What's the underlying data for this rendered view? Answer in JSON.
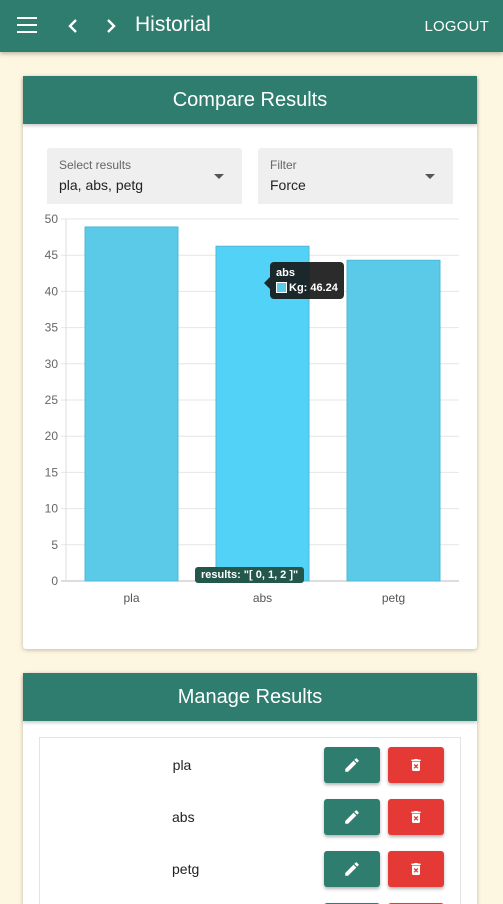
{
  "appbar": {
    "title": "Historial",
    "logout_label": "LOGOUT",
    "icons": [
      "menu-icon",
      "chevron-left-icon",
      "chevron-right-icon"
    ]
  },
  "compare": {
    "title": "Compare Results",
    "select_results": {
      "label": "Select results",
      "value": "pla, abs, petg"
    },
    "filter": {
      "label": "Filter",
      "value": "Force"
    },
    "results_badge": "results: \"[ 0, 1, 2 ]\"",
    "tooltip": {
      "title": "abs",
      "text": "Kg: 46.24"
    }
  },
  "chart_data": {
    "type": "bar",
    "categories": [
      "pla",
      "abs",
      "petg"
    ],
    "series": [
      {
        "name": "Kg",
        "values": [
          48.9,
          46.24,
          44.3
        ]
      }
    ],
    "ylim": [
      0,
      50
    ],
    "yticks": [
      0,
      5,
      10,
      15,
      20,
      25,
      30,
      35,
      40,
      45,
      50
    ],
    "grid": true,
    "colors": {
      "bar": "#5bcae9",
      "bar_active": "#52d2f7",
      "bar_border": "#4fb8d6"
    }
  },
  "manage": {
    "title": "Manage Results",
    "items": [
      {
        "name": "pla"
      },
      {
        "name": "abs"
      },
      {
        "name": "petg"
      }
    ]
  },
  "colors": {
    "primary": "#2e7d6e",
    "danger": "#e53935",
    "background": "#fdf6e0"
  }
}
